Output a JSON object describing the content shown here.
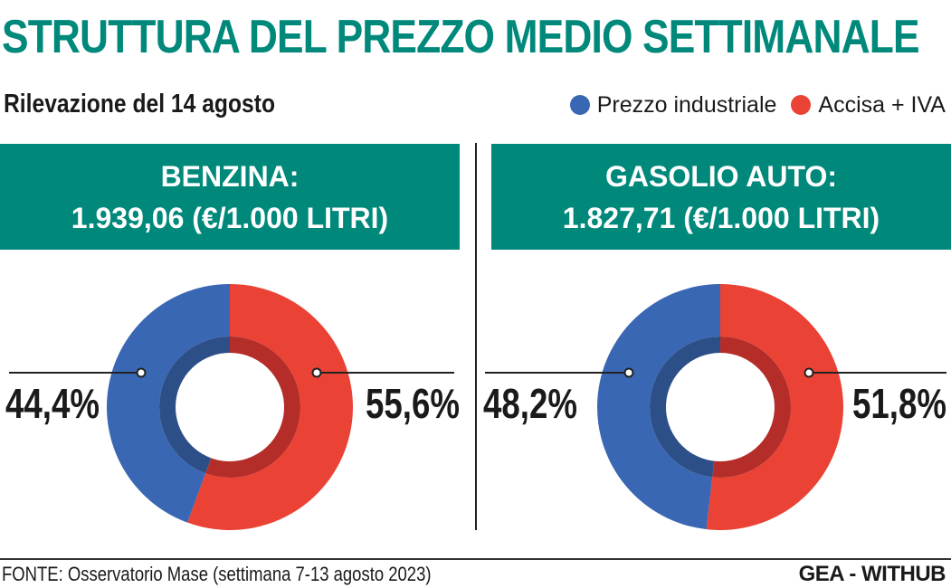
{
  "title": "STRUTTURA DEL PREZZO MEDIO SETTIMANALE",
  "subtitle": "Rilevazione del 14 agosto",
  "legend": [
    {
      "label": "Prezzo industriale",
      "color": "#3a67b3"
    },
    {
      "label": "Accisa + IVA",
      "color": "#ea4336"
    }
  ],
  "colors": {
    "accent": "#00897b",
    "industrial": "#3a67b3",
    "tax": "#ea4336",
    "industrial_inner": "#2d4f88",
    "tax_inner": "#b52d28"
  },
  "panels": [
    {
      "title": "BENZINA:",
      "value": "1.939,06 (€/1.000 LITRI)"
    },
    {
      "title": "GASOLIO AUTO:",
      "value": "1.827,71 (€/1.000 LITRI)"
    }
  ],
  "chart_data": [
    {
      "type": "pie",
      "title": "BENZINA: 1.939,06 (€/1.000 LITRI)",
      "slices": [
        {
          "label": "Prezzo industriale",
          "value": 44.4,
          "display": "44,4%"
        },
        {
          "label": "Accisa + IVA",
          "value": 55.6,
          "display": "55,6%"
        }
      ]
    },
    {
      "type": "pie",
      "title": "GASOLIO AUTO: 1.827,71 (€/1.000 LITRI)",
      "slices": [
        {
          "label": "Prezzo industriale",
          "value": 48.2,
          "display": "48,2%"
        },
        {
          "label": "Accisa + IVA",
          "value": 51.8,
          "display": "51,8%"
        }
      ]
    }
  ],
  "footer": {
    "source": "FONTE: Osservatorio Mase (settimana 7-13 agosto 2023)",
    "credit": "GEA - WITHUB"
  }
}
